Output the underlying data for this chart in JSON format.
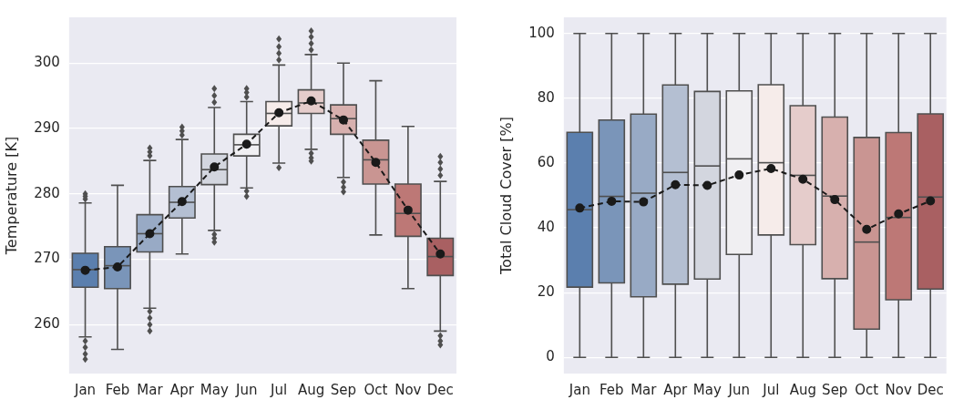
{
  "chart_data": [
    {
      "type": "box",
      "ylabel": "Temperature [K]",
      "categories": [
        "Jan",
        "Feb",
        "Mar",
        "Apr",
        "May",
        "Jun",
        "Jul",
        "Aug",
        "Sep",
        "Oct",
        "Nov",
        "Dec"
      ],
      "ylim": [
        252.5,
        307
      ],
      "yticks": [
        260,
        270,
        280,
        290,
        300
      ],
      "grid": "y",
      "legend": false,
      "series": [
        {
          "colors": [
            "#5b7fae",
            "#7a95b9",
            "#98aac5",
            "#b4bfd2",
            "#d3d6df",
            "#f0eff2",
            "#f6ecea",
            "#e5cccb",
            "#d7b0ae",
            "#c99592",
            "#bd7876",
            "#a96062"
          ],
          "boxes": [
            {
              "low": 258.1,
              "q1": 265.7,
              "median": 268.4,
              "q3": 270.9,
              "high": 278.6,
              "outliers": [
                279.2,
                279.6,
                280.0,
                257.5,
                256.5,
                255.5,
                254.7
              ]
            },
            {
              "low": 256.2,
              "q1": 265.5,
              "median": 269.0,
              "q3": 271.9,
              "high": 281.3
            },
            {
              "low": 262.5,
              "q1": 271.1,
              "median": 273.9,
              "q3": 276.8,
              "high": 285.1,
              "outliers": [
                285.8,
                286.4,
                287.0,
                262.0,
                261.0,
                260.0,
                259.0
              ]
            },
            {
              "low": 270.8,
              "q1": 276.3,
              "median": 278.7,
              "q3": 281.1,
              "high": 288.3,
              "outliers": [
                289.0,
                289.6,
                290.2
              ]
            },
            {
              "low": 274.4,
              "q1": 281.4,
              "median": 283.7,
              "q3": 286.1,
              "high": 293.2,
              "outliers": [
                294.0,
                295.0,
                296.1,
                273.8,
                273.2,
                272.6
              ]
            },
            {
              "low": 280.9,
              "q1": 285.8,
              "median": 287.5,
              "q3": 289.1,
              "high": 294.1,
              "outliers": [
                294.8,
                295.5,
                296.1,
                280.4,
                279.6
              ]
            },
            {
              "low": 284.7,
              "q1": 290.4,
              "median": 292.3,
              "q3": 294.1,
              "high": 299.7,
              "outliers": [
                300.5,
                301.5,
                302.5,
                303.7,
                284.0
              ]
            },
            {
              "low": 286.8,
              "q1": 292.3,
              "median": 293.9,
              "q3": 295.9,
              "high": 301.3,
              "outliers": [
                302.0,
                303.0,
                304.0,
                304.9,
                286.2,
                285.5,
                285.0
              ]
            },
            {
              "low": 282.5,
              "q1": 289.1,
              "median": 291.5,
              "q3": 293.6,
              "high": 300.0,
              "outliers": [
                281.8,
                281.0,
                280.3
              ]
            },
            {
              "low": 273.7,
              "q1": 281.5,
              "median": 285.2,
              "q3": 288.2,
              "high": 297.3
            },
            {
              "low": 265.5,
              "q1": 273.5,
              "median": 277.0,
              "q3": 281.5,
              "high": 290.3
            },
            {
              "low": 259.0,
              "q1": 267.5,
              "median": 270.4,
              "q3": 273.2,
              "high": 281.9,
              "outliers": [
                282.8,
                283.8,
                284.8,
                285.7,
                258.3,
                257.5,
                256.9
              ]
            }
          ]
        },
        {
          "type": "line",
          "color": "#1a1a1a",
          "marker": "circle",
          "line_style": "dashed",
          "values": [
            268.3,
            268.8,
            273.9,
            278.8,
            284.1,
            287.6,
            292.4,
            294.2,
            291.3,
            284.8,
            277.5,
            270.8
          ]
        }
      ]
    },
    {
      "type": "box",
      "ylabel": "Total Cloud Cover [%]",
      "categories": [
        "Jan",
        "Feb",
        "Mar",
        "Apr",
        "May",
        "Jun",
        "Jul",
        "Aug",
        "Sep",
        "Oct",
        "Nov",
        "Dec"
      ],
      "ylim": [
        -5,
        105
      ],
      "yticks": [
        0,
        20,
        40,
        60,
        80,
        100
      ],
      "grid": "y",
      "legend": false,
      "series": [
        {
          "colors": [
            "#5b7fae",
            "#7a95b9",
            "#98aac5",
            "#b4bfd2",
            "#d3d6df",
            "#f0eff2",
            "#f6ecea",
            "#e5cccb",
            "#d7b0ae",
            "#c99592",
            "#bd7876",
            "#a96062"
          ],
          "boxes": [
            {
              "low": 0,
              "q1": 21.7,
              "median": 45.6,
              "q3": 69.5,
              "high": 100
            },
            {
              "low": 0,
              "q1": 23.0,
              "median": 49.7,
              "q3": 73.3,
              "high": 100
            },
            {
              "low": 0,
              "q1": 18.7,
              "median": 50.7,
              "q3": 75.1,
              "high": 100
            },
            {
              "low": 0,
              "q1": 22.6,
              "median": 57.1,
              "q3": 84.1,
              "high": 100
            },
            {
              "low": 0,
              "q1": 24.2,
              "median": 59.1,
              "q3": 82.1,
              "high": 100
            },
            {
              "low": 0,
              "q1": 31.8,
              "median": 61.3,
              "q3": 82.3,
              "high": 100
            },
            {
              "low": 0,
              "q1": 37.8,
              "median": 60.1,
              "q3": 84.2,
              "high": 100
            },
            {
              "low": 0,
              "q1": 34.8,
              "median": 56.2,
              "q3": 77.7,
              "high": 100
            },
            {
              "low": 0,
              "q1": 24.3,
              "median": 49.8,
              "q3": 74.2,
              "high": 100
            },
            {
              "low": 0,
              "q1": 8.7,
              "median": 35.6,
              "q3": 67.9,
              "high": 100
            },
            {
              "low": 0,
              "q1": 17.8,
              "median": 43.2,
              "q3": 69.4,
              "high": 100
            },
            {
              "low": 0,
              "q1": 21.1,
              "median": 49.5,
              "q3": 75.2,
              "high": 100
            }
          ]
        },
        {
          "type": "line",
          "color": "#1a1a1a",
          "marker": "circle",
          "line_style": "dashed",
          "values": [
            46.1,
            48.2,
            48.0,
            53.3,
            53.1,
            56.3,
            58.3,
            55.0,
            48.7,
            39.5,
            44.3,
            48.3
          ]
        }
      ]
    }
  ]
}
